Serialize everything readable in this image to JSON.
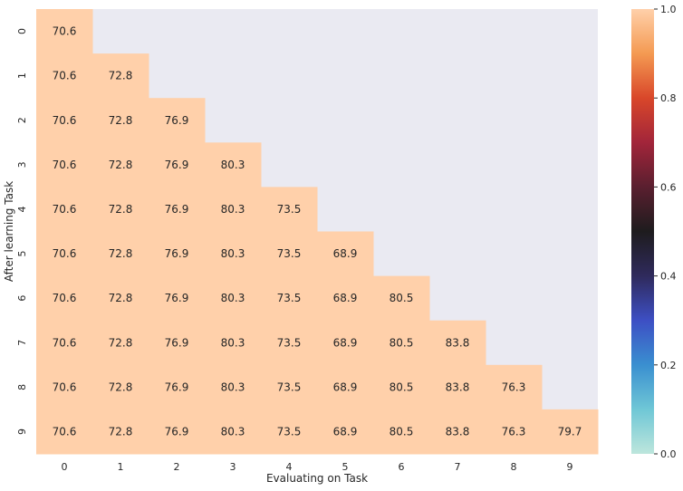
{
  "chart_data": {
    "type": "heatmap",
    "title": "",
    "xlabel": "Evaluating on Task",
    "ylabel": "After learning Task",
    "x_categories": [
      "0",
      "1",
      "2",
      "3",
      "4",
      "5",
      "6",
      "7",
      "8",
      "9"
    ],
    "y_categories": [
      "0",
      "1",
      "2",
      "3",
      "4",
      "5",
      "6",
      "7",
      "8",
      "9"
    ],
    "cell_values": [
      [
        "70.6",
        "",
        "",
        "",
        "",
        "",
        "",
        "",
        "",
        ""
      ],
      [
        "70.6",
        "72.8",
        "",
        "",
        "",
        "",
        "",
        "",
        "",
        ""
      ],
      [
        "70.6",
        "72.8",
        "76.9",
        "",
        "",
        "",
        "",
        "",
        "",
        ""
      ],
      [
        "70.6",
        "72.8",
        "76.9",
        "80.3",
        "",
        "",
        "",
        "",
        "",
        ""
      ],
      [
        "70.6",
        "72.8",
        "76.9",
        "80.3",
        "73.5",
        "",
        "",
        "",
        "",
        ""
      ],
      [
        "70.6",
        "72.8",
        "76.9",
        "80.3",
        "73.5",
        "68.9",
        "",
        "",
        "",
        ""
      ],
      [
        "70.6",
        "72.8",
        "76.9",
        "80.3",
        "73.5",
        "68.9",
        "80.5",
        "",
        "",
        ""
      ],
      [
        "70.6",
        "72.8",
        "76.9",
        "80.3",
        "73.5",
        "68.9",
        "80.5",
        "83.8",
        "",
        ""
      ],
      [
        "70.6",
        "72.8",
        "76.9",
        "80.3",
        "73.5",
        "68.9",
        "80.5",
        "83.8",
        "76.3",
        ""
      ],
      [
        "70.6",
        "72.8",
        "76.9",
        "80.3",
        "73.5",
        "68.9",
        "80.5",
        "83.8",
        "76.3",
        "79.7"
      ]
    ],
    "cell_color": "#ffd0aa",
    "masked_color": "#eaeaf2",
    "grid": false,
    "colorbar": {
      "ticks": [
        "0.0",
        "0.2",
        "0.4",
        "0.6",
        "0.8",
        "1.0"
      ],
      "range": [
        0,
        1
      ],
      "colormap": "icefire",
      "position": "right"
    }
  }
}
